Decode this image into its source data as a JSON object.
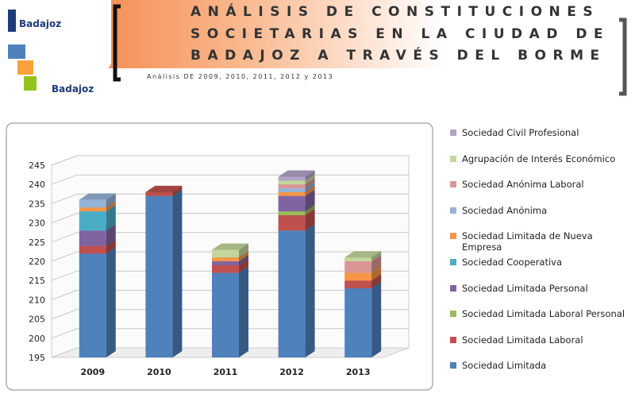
{
  "header": {
    "title_lines": [
      "ANÁLISIS DE CONSTITUCIONES",
      "SOCIETARIAS EN LA CIUDAD DE",
      "BADAJOZ A TRAVÉS DEL BORME"
    ],
    "subtitle": "Análisis DE 2009, 2010, 2011, 2012 y 2013",
    "logo_top": "Badajoz",
    "logo_bottom": "Badajoz"
  },
  "chart_data": {
    "type": "stacked-bar-3d",
    "categories": [
      "2009",
      "2010",
      "2011",
      "2012",
      "2013"
    ],
    "ylim": [
      195,
      245
    ],
    "yticks": [
      195,
      200,
      205,
      210,
      215,
      220,
      225,
      230,
      235,
      240,
      245
    ],
    "grid": true,
    "series": [
      {
        "name": "Sociedad Limitada",
        "color": "#4f81bd",
        "values": [
          222,
          237,
          217,
          228,
          213
        ]
      },
      {
        "name": "Sociedad Limitada Laboral",
        "color": "#c0504d",
        "values": [
          2,
          1,
          2,
          4,
          2
        ]
      },
      {
        "name": "Sociedad Limitada Laboral Personal",
        "color": "#9bbb59",
        "values": [
          0,
          0,
          0,
          1,
          0
        ]
      },
      {
        "name": "Sociedad Limitada Personal",
        "color": "#8064a2",
        "values": [
          4,
          0,
          1,
          4,
          0
        ]
      },
      {
        "name": "Sociedad Cooperativa",
        "color": "#4bacc6",
        "values": [
          5,
          0,
          0,
          0,
          0
        ]
      },
      {
        "name": "Sociedad Limitada de Nueva Empresa",
        "color": "#f79646",
        "values": [
          1,
          0,
          1,
          1,
          2
        ]
      },
      {
        "name": "Sociedad Anónima",
        "color": "#95b3d7",
        "values": [
          2,
          0,
          0,
          1,
          0
        ]
      },
      {
        "name": "Sociedad Anónima Laboral",
        "color": "#d99694",
        "values": [
          0,
          0,
          0,
          1,
          3
        ]
      },
      {
        "name": "Agrupación de Interés Económico",
        "color": "#c3d69b",
        "values": [
          0,
          0,
          2,
          1,
          1
        ]
      },
      {
        "name": "Sociedad Civil Profesional",
        "color": "#b3a2c7",
        "values": [
          0,
          0,
          0,
          1,
          0
        ]
      }
    ]
  }
}
